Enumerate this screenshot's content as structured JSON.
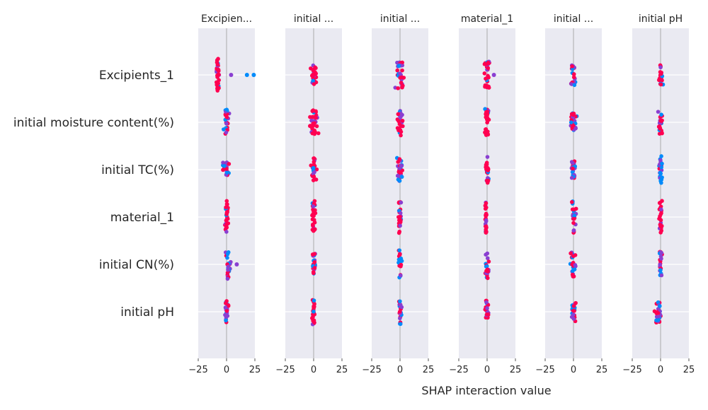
{
  "chart_data": {
    "type": "scatter",
    "xlabel": "SHAP interaction value",
    "xlim": [
      -25,
      25
    ],
    "xticks": [
      "−25",
      "0",
      "25"
    ],
    "features": [
      "Excipients_1",
      "initial moisture content(%)",
      "initial TC(%)",
      "material_1",
      "initial CN(%)",
      "initial pH"
    ],
    "panel_titles": [
      "Excipien...",
      "initial ...",
      "initial ...",
      "material_1",
      "initial ...",
      "initial pH"
    ],
    "colors": {
      "high": "#ff0051",
      "mid": "#8a3fd1",
      "low": "#008bfb",
      "background": "#eaeaf2",
      "grid": "#ffffff",
      "zero_line": "#999999"
    },
    "cells": [
      [
        {
          "center": -8,
          "spread": 2,
          "height": 0.9,
          "mix": "high",
          "count": 34,
          "outliers": [
            4,
            18,
            24
          ]
        },
        {
          "center": 0,
          "spread": 3,
          "height": 0.55,
          "mix": "high",
          "count": 26,
          "outliers": []
        },
        {
          "center": 0,
          "spread": 5,
          "height": 0.75,
          "mix": "mixed",
          "count": 30,
          "outliers": []
        },
        {
          "center": 0,
          "spread": 3,
          "height": 0.75,
          "mix": "high",
          "count": 26,
          "outliers": [
            6
          ]
        },
        {
          "center": 0,
          "spread": 3,
          "height": 0.6,
          "mix": "mixed",
          "count": 24,
          "outliers": []
        },
        {
          "center": 0,
          "spread": 3,
          "height": 0.55,
          "mix": "high",
          "count": 26,
          "outliers": []
        }
      ],
      [
        {
          "center": 0,
          "spread": 3,
          "height": 0.75,
          "mix": "mixed",
          "count": 24,
          "outliers": []
        },
        {
          "center": 0,
          "spread": 5,
          "height": 0.7,
          "mix": "high",
          "count": 32,
          "outliers": []
        },
        {
          "center": 0,
          "spread": 3,
          "height": 0.75,
          "mix": "mixed",
          "count": 24,
          "outliers": []
        },
        {
          "center": 0,
          "spread": 3,
          "height": 0.75,
          "mix": "high",
          "count": 26,
          "outliers": []
        },
        {
          "center": 0,
          "spread": 4,
          "height": 0.5,
          "mix": "mixed",
          "count": 28,
          "outliers": []
        },
        {
          "center": 0,
          "spread": 3,
          "height": 0.65,
          "mix": "high",
          "count": 24,
          "outliers": []
        }
      ],
      [
        {
          "center": 0,
          "spread": 4,
          "height": 0.4,
          "mix": "mixed",
          "count": 26,
          "outliers": []
        },
        {
          "center": 0,
          "spread": 3,
          "height": 0.7,
          "mix": "high",
          "count": 24,
          "outliers": []
        },
        {
          "center": 0,
          "spread": 4,
          "height": 0.65,
          "mix": "mixed",
          "count": 28,
          "outliers": []
        },
        {
          "center": 0,
          "spread": 2,
          "height": 0.75,
          "mix": "high",
          "count": 24,
          "outliers": []
        },
        {
          "center": 0,
          "spread": 3,
          "height": 0.5,
          "mix": "mixed",
          "count": 24,
          "outliers": []
        },
        {
          "center": 0,
          "spread": 2,
          "height": 0.75,
          "mix": "low",
          "count": 22,
          "outliers": []
        }
      ],
      [
        {
          "center": 0,
          "spread": 2,
          "height": 0.9,
          "mix": "high",
          "count": 26,
          "outliers": []
        },
        {
          "center": 0,
          "spread": 2,
          "height": 0.9,
          "mix": "high",
          "count": 28,
          "outliers": []
        },
        {
          "center": 0,
          "spread": 2,
          "height": 0.9,
          "mix": "high",
          "count": 28,
          "outliers": []
        },
        {
          "center": -1,
          "spread": 1,
          "height": 0.9,
          "mix": "high",
          "count": 26,
          "outliers": []
        },
        {
          "center": 0,
          "spread": 3,
          "height": 0.9,
          "mix": "mixed",
          "count": 26,
          "outliers": []
        },
        {
          "center": 0,
          "spread": 2,
          "height": 0.9,
          "mix": "high",
          "count": 24,
          "outliers": []
        }
      ],
      [
        {
          "center": 1,
          "spread": 3,
          "height": 0.85,
          "mix": "mixed",
          "count": 24,
          "outliers": [
            9
          ]
        },
        {
          "center": 0,
          "spread": 2,
          "height": 0.6,
          "mix": "mixed",
          "count": 22,
          "outliers": []
        },
        {
          "center": 0,
          "spread": 2,
          "height": 0.8,
          "mix": "low",
          "count": 22,
          "outliers": []
        },
        {
          "center": 0,
          "spread": 2,
          "height": 0.8,
          "mix": "mixed",
          "count": 22,
          "outliers": []
        },
        {
          "center": 0,
          "spread": 3,
          "height": 0.7,
          "mix": "mixed",
          "count": 26,
          "outliers": []
        },
        {
          "center": 0,
          "spread": 2,
          "height": 0.7,
          "mix": "mixed",
          "count": 22,
          "outliers": []
        }
      ],
      [
        {
          "center": 0,
          "spread": 2,
          "height": 0.6,
          "mix": "mixed",
          "count": 24,
          "outliers": []
        },
        {
          "center": 0,
          "spread": 2,
          "height": 0.7,
          "mix": "high",
          "count": 24,
          "outliers": []
        },
        {
          "center": 0,
          "spread": 2,
          "height": 0.7,
          "mix": "mixed",
          "count": 22,
          "outliers": []
        },
        {
          "center": 0,
          "spread": 2,
          "height": 0.65,
          "mix": "mixed",
          "count": 22,
          "outliers": []
        },
        {
          "center": 0,
          "spread": 3,
          "height": 0.55,
          "mix": "mixed",
          "count": 26,
          "outliers": []
        },
        {
          "center": -2,
          "spread": 4,
          "height": 0.6,
          "mix": "mixed",
          "count": 32,
          "outliers": []
        }
      ]
    ]
  }
}
